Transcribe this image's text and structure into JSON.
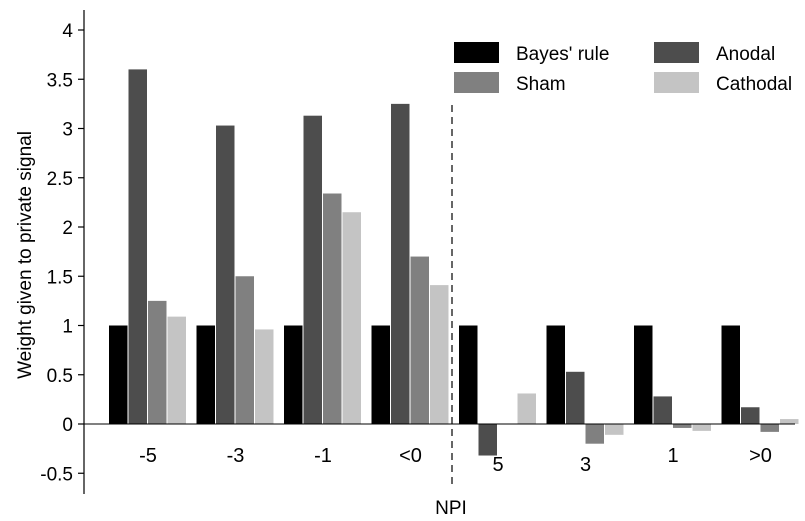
{
  "chart_data": {
    "type": "bar",
    "title": "",
    "xlabel": "NPI",
    "ylabel": "Weight given to private signal",
    "ylim": [
      -0.6,
      4.2
    ],
    "yticks": [
      -0.5,
      0,
      0.5,
      1,
      1.5,
      2,
      2.5,
      3,
      3.5,
      4
    ],
    "ytick_labels": [
      "-0.5",
      "0",
      "0.5",
      "1",
      "1.5",
      "2",
      "2.5",
      "3",
      "3.5",
      "4"
    ],
    "categories": [
      "-5",
      "-3",
      "-1",
      "<0",
      "5",
      "3",
      "1",
      ">0"
    ],
    "divider_after_index": 3,
    "divider_style": "dashed",
    "legend_position": "top-right",
    "legend_order": [
      "Bayes' rule",
      "Anodal",
      "Sham",
      "Cathodal"
    ],
    "series": [
      {
        "name": "Bayes' rule",
        "color": "#000000",
        "values": [
          1,
          1,
          1,
          1,
          1,
          1,
          1,
          1
        ]
      },
      {
        "name": "Anodal",
        "color": "#4d4d4d",
        "values": [
          3.6,
          3.03,
          3.13,
          3.25,
          -0.32,
          0.53,
          0.28,
          0.17
        ]
      },
      {
        "name": "Sham",
        "color": "#808080",
        "values": [
          1.25,
          1.5,
          2.34,
          1.7,
          0.0,
          -0.2,
          -0.04,
          -0.08
        ]
      },
      {
        "name": "Cathodal",
        "color": "#c4c4c4",
        "values": [
          1.09,
          0.96,
          2.15,
          1.41,
          0.31,
          -0.11,
          -0.07,
          0.05
        ]
      }
    ]
  }
}
